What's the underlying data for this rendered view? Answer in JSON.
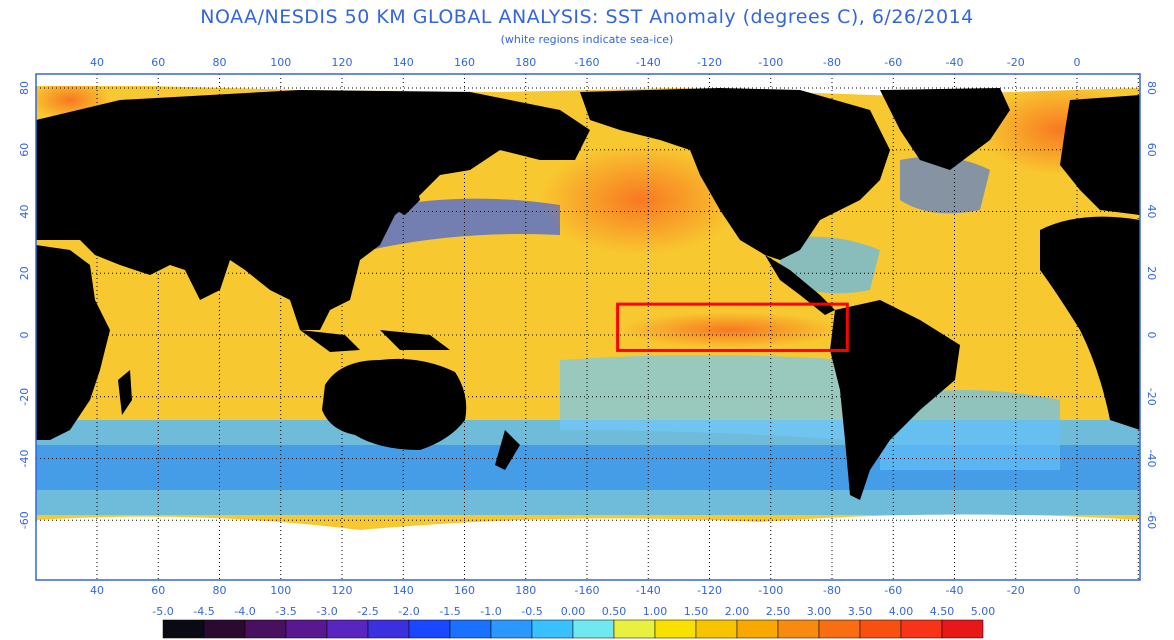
{
  "title": "NOAA/NESDIS 50 KM GLOBAL ANALYSIS: SST Anomaly (degrees C), 6/26/2014",
  "subtitle": "(white regions indicate sea-ice)",
  "lon_ticks": [
    "40",
    "60",
    "80",
    "100",
    "120",
    "140",
    "160",
    "180",
    "-160",
    "-140",
    "-120",
    "-100",
    "-80",
    "-60",
    "-40",
    "-20",
    "0"
  ],
  "lat_ticks": [
    "80",
    "60",
    "40",
    "20",
    "0",
    "-20",
    "-40",
    "-60"
  ],
  "colorbar": {
    "labels": [
      "-5.0",
      "-4.5",
      "-4.0",
      "-3.5",
      "-3.0",
      "-2.5",
      "-2.0",
      "-1.5",
      "-1.0",
      "-0.5",
      "0.00",
      "0.50",
      "1.00",
      "1.50",
      "2.00",
      "2.50",
      "3.00",
      "3.50",
      "4.00",
      "4.50",
      "5.00"
    ],
    "colors": [
      "#0a0a14",
      "#2b0a30",
      "#4a1060",
      "#5a1890",
      "#5a24c0",
      "#3a30e0",
      "#1848ff",
      "#1a70ff",
      "#2a98ff",
      "#38c0ff",
      "#70e8f0",
      "#e8f040",
      "#f8e000",
      "#f8c400",
      "#f8a800",
      "#f88a10",
      "#f86e10",
      "#f85010",
      "#f83418",
      "#e81818"
    ]
  },
  "highlight_box": {
    "lon_min": -150,
    "lon_max": -75,
    "lat_min": -5,
    "lat_max": 10,
    "color": "#ff0000"
  },
  "map_colors": {
    "land": "#000000",
    "ice": "#ffffff",
    "ocean_warm": "#f8c830",
    "ocean_cool": "#40a8ff",
    "grid": "#000000",
    "frame": "#3366dd"
  }
}
